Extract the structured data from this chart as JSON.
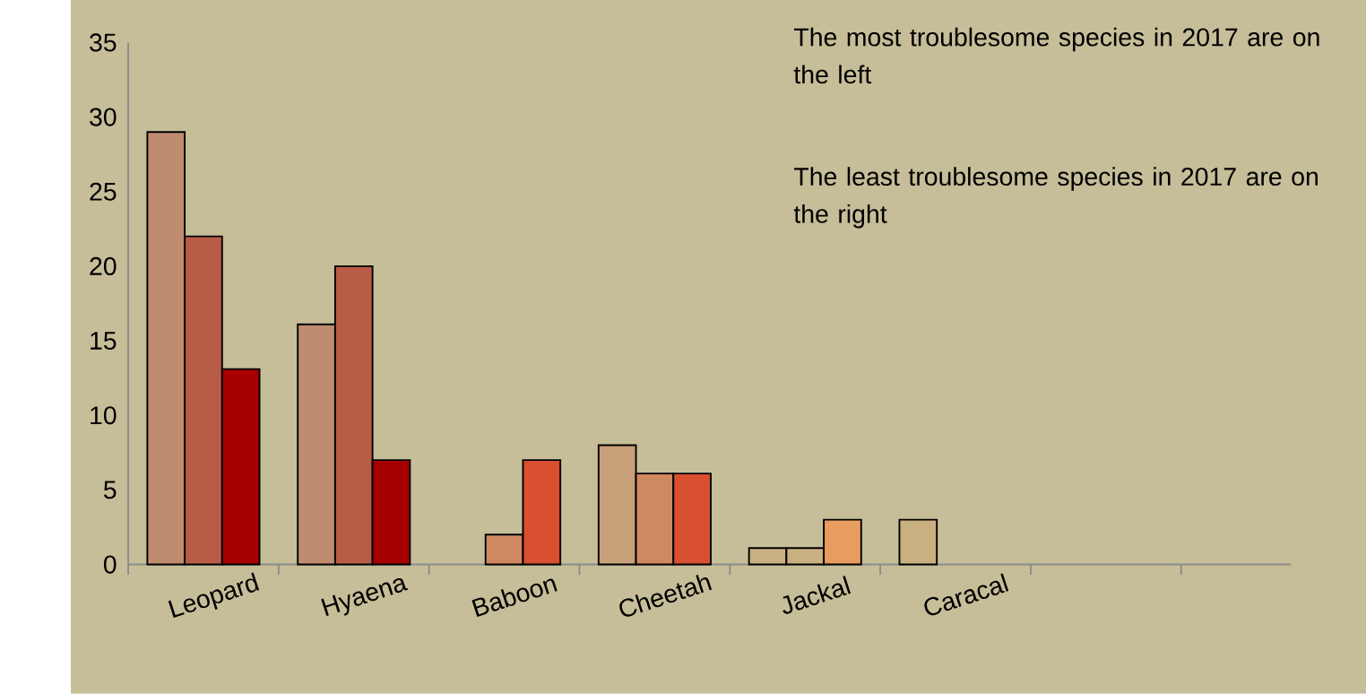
{
  "chart_data": {
    "type": "bar",
    "categories": [
      "Leopard",
      "Hyaena",
      "Baboon",
      "Cheetah",
      "Jackal",
      "Caracal",
      null,
      null
    ],
    "series": [
      {
        "values": [
          29,
          16.1,
          null,
          8,
          1.1,
          3,
          null,
          null
        ],
        "colors": [
          "#c08c70",
          "#c08c70",
          null,
          "#c8a07a",
          "#c8b080",
          "#c8b080",
          null,
          null
        ]
      },
      {
        "values": [
          22,
          20,
          2,
          6.1,
          1.1,
          null,
          null,
          null
        ],
        "colors": [
          "#b85c48",
          "#b85c48",
          "#d08860",
          "#d08860",
          "#c8b080",
          null,
          null,
          null
        ]
      },
      {
        "values": [
          13.1,
          7,
          7,
          6.1,
          3,
          null,
          null,
          null
        ],
        "colors": [
          "#a80000",
          "#a80000",
          "#d85030",
          "#d85030",
          "#e89c60",
          null,
          null,
          null
        ]
      }
    ],
    "ylim": [
      0,
      35
    ],
    "yticks": [
      0,
      5,
      10,
      15,
      20,
      25,
      30,
      35
    ],
    "annotations": [
      "The most troublesome species in 2017 are on the left",
      "The least troublesome species in 2017 are on the right"
    ]
  }
}
